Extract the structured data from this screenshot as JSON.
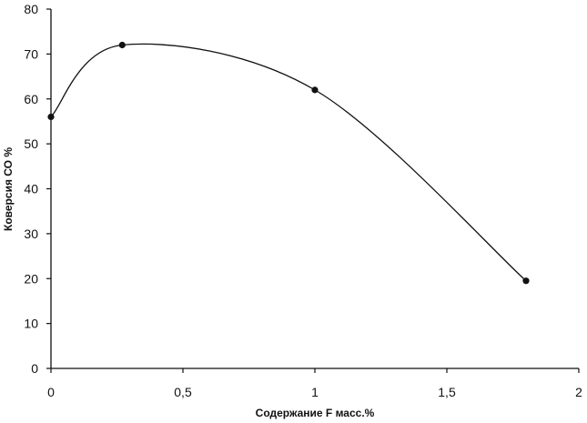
{
  "chart_data": {
    "type": "line",
    "xlabel": "Содержание F масс.%",
    "ylabel": "Коверсия СО %",
    "xlim": [
      0,
      2
    ],
    "ylim": [
      0,
      80
    ],
    "x_ticks": [
      "0",
      "0,5",
      "1",
      "1,5",
      "2"
    ],
    "y_ticks": [
      "0",
      "10",
      "20",
      "30",
      "40",
      "50",
      "60",
      "70",
      "80"
    ],
    "grid": false,
    "legend": "none",
    "series": [
      {
        "points": [
          {
            "x": 0.0,
            "y": 56
          },
          {
            "x": 0.27,
            "y": 72
          },
          {
            "x": 1.0,
            "y": 62
          },
          {
            "x": 1.8,
            "y": 19.5
          }
        ]
      }
    ],
    "colors": {
      "line": "#111111",
      "axis": "#111111"
    }
  }
}
